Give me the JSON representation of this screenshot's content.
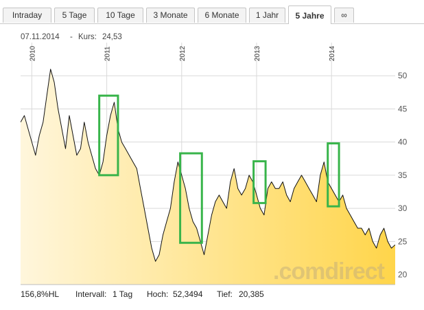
{
  "tabs": [
    {
      "label": "Intraday",
      "active": false
    },
    {
      "label": "5 Tage",
      "active": false
    },
    {
      "label": "10 Tage",
      "active": false
    },
    {
      "label": "3 Monate",
      "active": false
    },
    {
      "label": "6 Monate",
      "active": false
    },
    {
      "label": "1 Jahr",
      "active": false
    },
    {
      "label": "5 Jahre",
      "active": true
    },
    {
      "label": "∞",
      "active": false
    }
  ],
  "header": {
    "date": "07.11.2014",
    "separator": "-",
    "kurs_label": "Kurs:",
    "kurs_value": "24,53"
  },
  "footer": {
    "range": "156,8%HL",
    "interval_label": "Intervall:",
    "interval_value": "1 Tag",
    "high_label": "Hoch:",
    "high_value": "52,3494",
    "low_label": "Tief:",
    "low_value": "20,385"
  },
  "brand": ".comdirect",
  "colors": {
    "line": "#111111",
    "fill_left": "#fff6dc",
    "fill_right": "#ffd54a",
    "box": "#38b44a",
    "grid": "#d9d9d9"
  },
  "chart_data": {
    "type": "area",
    "x_unit": "year",
    "year_labels": [
      "2010",
      "2011",
      "2012",
      "2013",
      "2014"
    ],
    "year_positions": [
      2010,
      2011,
      2012,
      2013,
      2014
    ],
    "xlim": [
      2009.85,
      2014.85
    ],
    "ylim": [
      18.5,
      55
    ],
    "yticks": [
      20,
      25,
      30,
      35,
      40,
      45,
      50
    ],
    "ytick_labels": [
      "20",
      "25",
      "30",
      "35",
      "40",
      "45",
      "50"
    ],
    "grid": true,
    "series": [
      {
        "x": [
          2009.85,
          2009.9,
          2009.95,
          2010.0,
          2010.05,
          2010.1,
          2010.15,
          2010.2,
          2010.25,
          2010.3,
          2010.35,
          2010.4,
          2010.45,
          2010.5,
          2010.55,
          2010.6,
          2010.65,
          2010.7,
          2010.75,
          2010.8,
          2010.85,
          2010.9,
          2010.95,
          2011.0,
          2011.05,
          2011.1,
          2011.15,
          2011.2,
          2011.25,
          2011.3,
          2011.35,
          2011.4,
          2011.45,
          2011.5,
          2011.55,
          2011.6,
          2011.65,
          2011.7,
          2011.75,
          2011.8,
          2011.85,
          2011.9,
          2011.95,
          2012.0,
          2012.05,
          2012.1,
          2012.15,
          2012.2,
          2012.25,
          2012.3,
          2012.35,
          2012.4,
          2012.45,
          2012.5,
          2012.55,
          2012.6,
          2012.65,
          2012.7,
          2012.75,
          2012.8,
          2012.85,
          2012.9,
          2012.95,
          2013.0,
          2013.05,
          2013.1,
          2013.15,
          2013.2,
          2013.25,
          2013.3,
          2013.35,
          2013.4,
          2013.45,
          2013.5,
          2013.55,
          2013.6,
          2013.65,
          2013.7,
          2013.75,
          2013.8,
          2013.85,
          2013.9,
          2013.95,
          2014.0,
          2014.05,
          2014.1,
          2014.15,
          2014.2,
          2014.25,
          2014.3,
          2014.35,
          2014.4,
          2014.45,
          2014.5,
          2014.55,
          2014.6,
          2014.65,
          2014.7,
          2014.75,
          2014.8,
          2014.85
        ],
        "y": [
          43,
          44,
          42,
          40,
          38,
          41,
          43,
          47,
          51,
          49,
          45,
          42,
          39,
          44,
          41,
          38,
          39,
          43,
          40,
          38,
          36,
          35,
          37,
          41,
          44,
          46,
          42,
          40,
          39,
          38,
          37,
          36,
          33,
          30,
          27,
          24,
          22,
          23,
          26,
          28,
          30,
          34,
          37,
          35,
          33,
          30,
          28,
          27,
          25,
          23,
          26,
          29,
          31,
          32,
          31,
          30,
          34,
          36,
          33,
          32,
          33,
          35,
          34,
          32,
          30,
          29,
          33,
          34,
          33,
          33,
          34,
          32,
          31,
          33,
          34,
          35,
          34,
          33,
          32,
          31,
          35,
          37,
          34,
          33,
          32,
          31,
          32,
          30,
          29,
          28,
          27,
          27,
          26,
          27,
          25,
          24,
          26,
          27,
          25,
          24,
          24.5
        ]
      }
    ],
    "annotations": [
      {
        "type": "box",
        "x0": 2010.9,
        "x1": 2011.15,
        "y0": 35,
        "y1": 47
      },
      {
        "type": "box",
        "x0": 2011.98,
        "x1": 2012.27,
        "y0": 24.8,
        "y1": 38.3
      },
      {
        "type": "box",
        "x0": 2012.96,
        "x1": 2013.12,
        "y0": 30.8,
        "y1": 37.1
      },
      {
        "type": "box",
        "x0": 2013.95,
        "x1": 2014.1,
        "y0": 30.3,
        "y1": 39.8
      }
    ]
  }
}
